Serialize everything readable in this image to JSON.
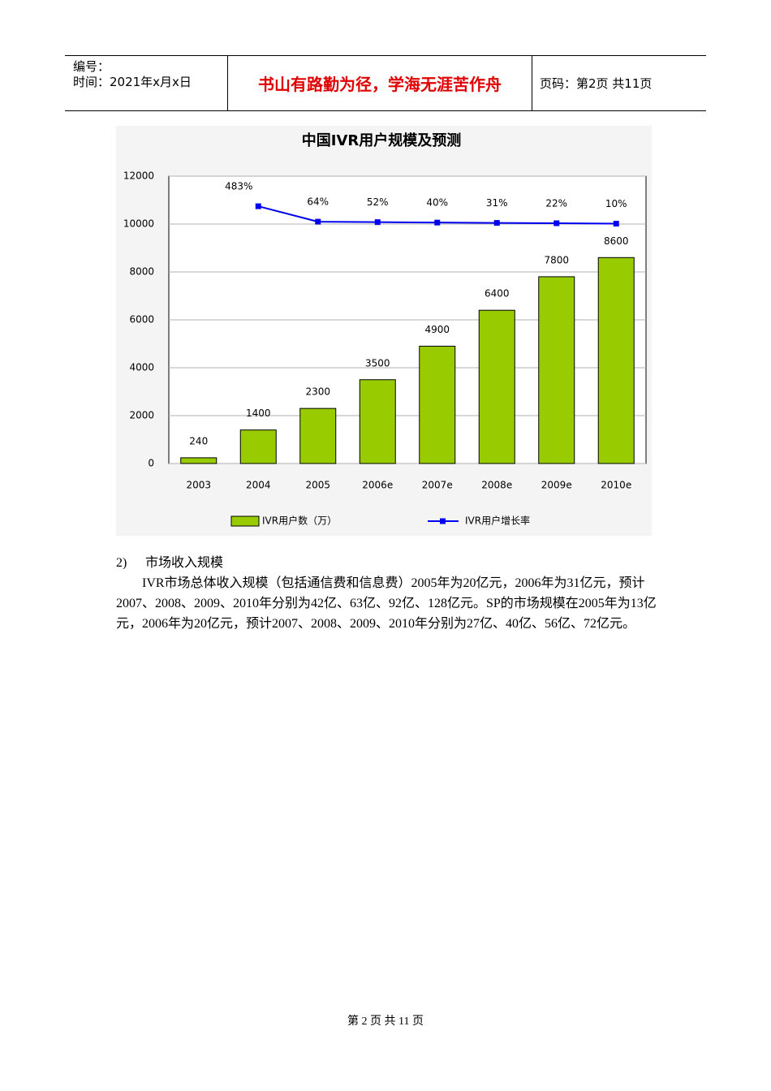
{
  "header": {
    "number": "编号：",
    "time": "时间：2021年x月x日",
    "motto": "书山有路勤为径，学海无涯苦作舟",
    "page": "页码：第2页 共11页"
  },
  "chart_data": {
    "type": "bar",
    "title": "中国IVR用户规模及预测",
    "categories": [
      "2003",
      "2004",
      "2005",
      "2006e",
      "2007e",
      "2008e",
      "2009e",
      "2010e"
    ],
    "series": [
      {
        "name": "IVR用户数（万）",
        "type": "bar",
        "color": "#99cc00",
        "values": [
          240,
          1400,
          2300,
          3500,
          4900,
          6400,
          7800,
          8600
        ]
      },
      {
        "name": "IVR用户增长率",
        "type": "line",
        "axis": "y2",
        "color": "#0000ee",
        "values": [
          null,
          483,
          64,
          52,
          40,
          31,
          22,
          10
        ],
        "value_labels": [
          null,
          "483%",
          "64%",
          "52%",
          "40%",
          "31%",
          "22%",
          "10%"
        ]
      }
    ],
    "ylim": [
      0,
      12000
    ],
    "yticks": [
      0,
      2000,
      4000,
      6000,
      8000,
      10000,
      12000
    ],
    "y2lim": [
      -6500,
      1300
    ],
    "grid": true,
    "legend": "bottom"
  },
  "section": {
    "number": "2)",
    "title": "市场收入规模"
  },
  "paragraph": "IVR市场总体收入规模（包括通信费和信息费）2005年为20亿元，2006年为31亿元，预计2007、2008、2009、2010年分别为42亿、63亿、92亿、128亿元。SP的市场规模在2005年为13亿元，2006年为20亿元，预计2007、2008、2009、2010年分别为27亿、40亿、56亿、72亿元。",
  "footer": "第 2 页 共 11 页"
}
